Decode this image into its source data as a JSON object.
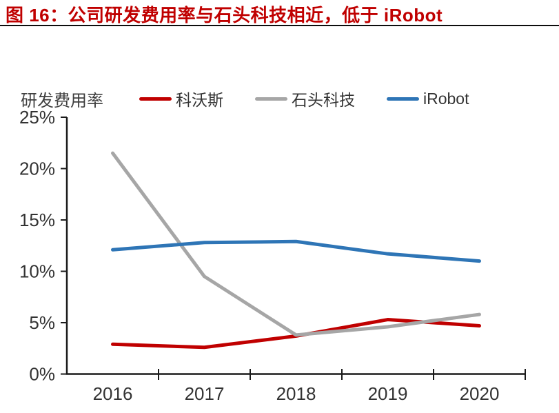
{
  "figure": {
    "title": "图 16：公司研发费用率与石头科技相近，低于 iRobot",
    "title_color": "#c00000"
  },
  "chart_data": {
    "type": "line",
    "title": "图 16：公司研发费用率与石头科技相近，低于 iRobot",
    "y_axis_label": "研发费用率",
    "unit": "%",
    "categories": [
      "2016",
      "2017",
      "2018",
      "2019",
      "2020"
    ],
    "series": [
      {
        "name": "科沃斯",
        "color": "#c00000",
        "values": [
          2.9,
          2.6,
          3.7,
          5.3,
          4.7
        ]
      },
      {
        "name": "石头科技",
        "color": "#a6a6a6",
        "values": [
          21.5,
          9.5,
          3.8,
          4.6,
          5.8
        ]
      },
      {
        "name": "iRobot",
        "color": "#2e75b6",
        "values": [
          12.1,
          12.8,
          12.9,
          11.7,
          11.0
        ]
      }
    ],
    "ylim": [
      0,
      25
    ],
    "ytick_step": 5,
    "ytick_labels": [
      "0%",
      "5%",
      "10%",
      "15%",
      "20%",
      "25%"
    ],
    "grid": false,
    "legend_position": "top",
    "axis_color": "#1a1a1a"
  }
}
